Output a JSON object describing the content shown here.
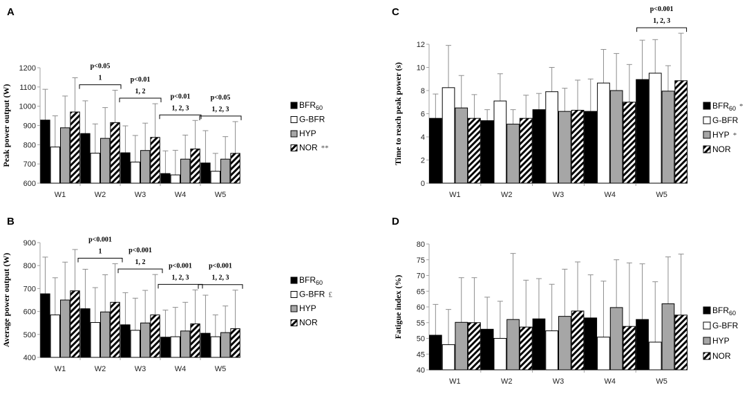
{
  "colors": {
    "BFR60": "#000000",
    "G-BFR": "#ffffff",
    "HYP": "#a6a6a6",
    "NOR": "hatch",
    "error_bar": "#8c8c8c",
    "axis": "#a0a0a0"
  },
  "chart_data": [
    {
      "panel": "A",
      "type": "bar",
      "ylabel": "Peak power output (W)",
      "ylim": [
        600,
        1200
      ],
      "yticks": [
        600,
        700,
        800,
        900,
        1000,
        1100,
        1200
      ],
      "categories": [
        "W1",
        "W2",
        "W3",
        "W4",
        "W5"
      ],
      "series": [
        {
          "name": "BFR60",
          "values": [
            928,
            858,
            758,
            650,
            705
          ],
          "errors": [
            160,
            170,
            140,
            118,
            168
          ]
        },
        {
          "name": "G-BFR",
          "values": [
            788,
            756,
            710,
            643,
            662
          ],
          "errors": [
            162,
            152,
            138,
            128,
            93
          ]
        },
        {
          "name": "HYP",
          "values": [
            888,
            833,
            770,
            725,
            725
          ],
          "errors": [
            165,
            160,
            142,
            125,
            117
          ]
        },
        {
          "name": "NOR",
          "values": [
            970,
            915,
            838,
            778,
            755
          ],
          "errors": [
            178,
            168,
            175,
            148,
            165
          ]
        }
      ],
      "legend": [
        {
          "base": "BFR",
          "sub": "60",
          "mark": ""
        },
        {
          "base": "G-BFR",
          "sub": "",
          "mark": ""
        },
        {
          "base": "HYP",
          "sub": "",
          "mark": ""
        },
        {
          "base": "NOR",
          "sub": "",
          "mark": "**"
        }
      ],
      "annotations": [
        {
          "category": "W2",
          "p": "p<0.05",
          "groups": "1"
        },
        {
          "category": "W3",
          "p": "p<0.01",
          "groups": "1, 2"
        },
        {
          "category": "W4",
          "p": "p<0.01",
          "groups": "1, 2, 3"
        },
        {
          "category": "W5",
          "p": "p<0.05",
          "groups": "1, 2, 3"
        }
      ]
    },
    {
      "panel": "B",
      "type": "bar",
      "ylabel": "Average power output (W)",
      "ylim": [
        400,
        900
      ],
      "yticks": [
        400,
        500,
        600,
        700,
        800,
        900
      ],
      "categories": [
        "W1",
        "W2",
        "W3",
        "W4",
        "W5"
      ],
      "series": [
        {
          "name": "BFR60",
          "values": [
            677,
            612,
            542,
            488,
            505
          ],
          "errors": [
            160,
            172,
            140,
            118,
            166
          ]
        },
        {
          "name": "G-BFR",
          "values": [
            585,
            552,
            518,
            490,
            490
          ],
          "errors": [
            162,
            152,
            140,
            128,
            95
          ]
        },
        {
          "name": "HYP",
          "values": [
            650,
            598,
            550,
            515,
            508
          ],
          "errors": [
            165,
            162,
            142,
            125,
            116
          ]
        },
        {
          "name": "NOR",
          "values": [
            690,
            640,
            585,
            546,
            525
          ],
          "errors": [
            180,
            168,
            176,
            148,
            168
          ]
        }
      ],
      "legend": [
        {
          "base": "BFR",
          "sub": "60",
          "mark": ""
        },
        {
          "base": "G-BFR",
          "sub": "",
          "mark": "£"
        },
        {
          "base": "HYP",
          "sub": "",
          "mark": ""
        },
        {
          "base": "NOR",
          "sub": "",
          "mark": ""
        }
      ],
      "annotations": [
        {
          "category": "W2",
          "p": "p<0.001",
          "groups": "1"
        },
        {
          "category": "W3",
          "p": "p<0.001",
          "groups": "1, 2"
        },
        {
          "category": "W4",
          "p": "p<0.001",
          "groups": "1, 2, 3"
        },
        {
          "category": "W5",
          "p": "p<0.001",
          "groups": "1, 2, 3"
        }
      ]
    },
    {
      "panel": "C",
      "type": "bar",
      "ylabel": "Time to reach peak power (s)",
      "ylim": [
        0,
        12
      ],
      "yticks": [
        0,
        2,
        4,
        6,
        8,
        10,
        12
      ],
      "categories": [
        "W1",
        "W2",
        "W3",
        "W4",
        "W5"
      ],
      "series": [
        {
          "name": "BFR60",
          "values": [
            5.6,
            5.4,
            6.35,
            6.2,
            8.95
          ],
          "errors": [
            2.1,
            0.95,
            1.4,
            2.8,
            3.4
          ]
        },
        {
          "name": "G-BFR",
          "values": [
            8.25,
            7.1,
            7.9,
            8.65,
            9.5
          ],
          "errors": [
            3.65,
            2.35,
            2.1,
            2.9,
            2.9
          ]
        },
        {
          "name": "HYP",
          "values": [
            6.5,
            5.1,
            6.2,
            8.0,
            7.95
          ],
          "errors": [
            2.8,
            1.25,
            2.0,
            3.2,
            2.2
          ]
        },
        {
          "name": "NOR",
          "values": [
            5.6,
            5.6,
            6.3,
            7.0,
            8.85
          ],
          "errors": [
            2.05,
            2.0,
            2.6,
            3.25,
            4.1
          ]
        }
      ],
      "legend": [
        {
          "base": "BFR",
          "sub": "60",
          "mark": "*"
        },
        {
          "base": "G-BFR",
          "sub": "",
          "mark": ""
        },
        {
          "base": "HYP",
          "sub": "",
          "mark": "*"
        },
        {
          "base": "NOR",
          "sub": "",
          "mark": ""
        }
      ],
      "annotations": [
        {
          "category": "W5",
          "p": "p<0.001",
          "groups": "1, 2, 3"
        }
      ]
    },
    {
      "panel": "D",
      "type": "bar",
      "ylabel": "Fatigue index (%)",
      "ylim": [
        40,
        80
      ],
      "yticks": [
        40,
        45,
        50,
        55,
        60,
        65,
        70,
        75,
        80
      ],
      "categories": [
        "W1",
        "W2",
        "W3",
        "W4",
        "W5"
      ],
      "series": [
        {
          "name": "BFR60",
          "values": [
            51.0,
            52.9,
            56.2,
            56.5,
            56.0
          ],
          "errors": [
            9.8,
            10.2,
            12.8,
            13.7,
            17.7
          ]
        },
        {
          "name": "G-BFR",
          "values": [
            48.0,
            50.0,
            52.4,
            50.4,
            48.8
          ],
          "errors": [
            11.2,
            11.8,
            14.8,
            17.8,
            19.2
          ]
        },
        {
          "name": "HYP",
          "values": [
            55.1,
            56.0,
            57.0,
            59.8,
            61.0
          ],
          "errors": [
            14.2,
            21.0,
            15.0,
            15.2,
            14.9
          ]
        },
        {
          "name": "NOR",
          "values": [
            55.0,
            53.6,
            58.7,
            53.8,
            57.4
          ],
          "errors": [
            14.3,
            14.9,
            15.6,
            20.2,
            19.4
          ]
        }
      ],
      "legend": [
        {
          "base": "BFR",
          "sub": "60",
          "mark": ""
        },
        {
          "base": "G-BFR",
          "sub": "",
          "mark": ""
        },
        {
          "base": "HYP",
          "sub": "",
          "mark": ""
        },
        {
          "base": "NOR",
          "sub": "",
          "mark": ""
        }
      ],
      "annotations": []
    }
  ]
}
